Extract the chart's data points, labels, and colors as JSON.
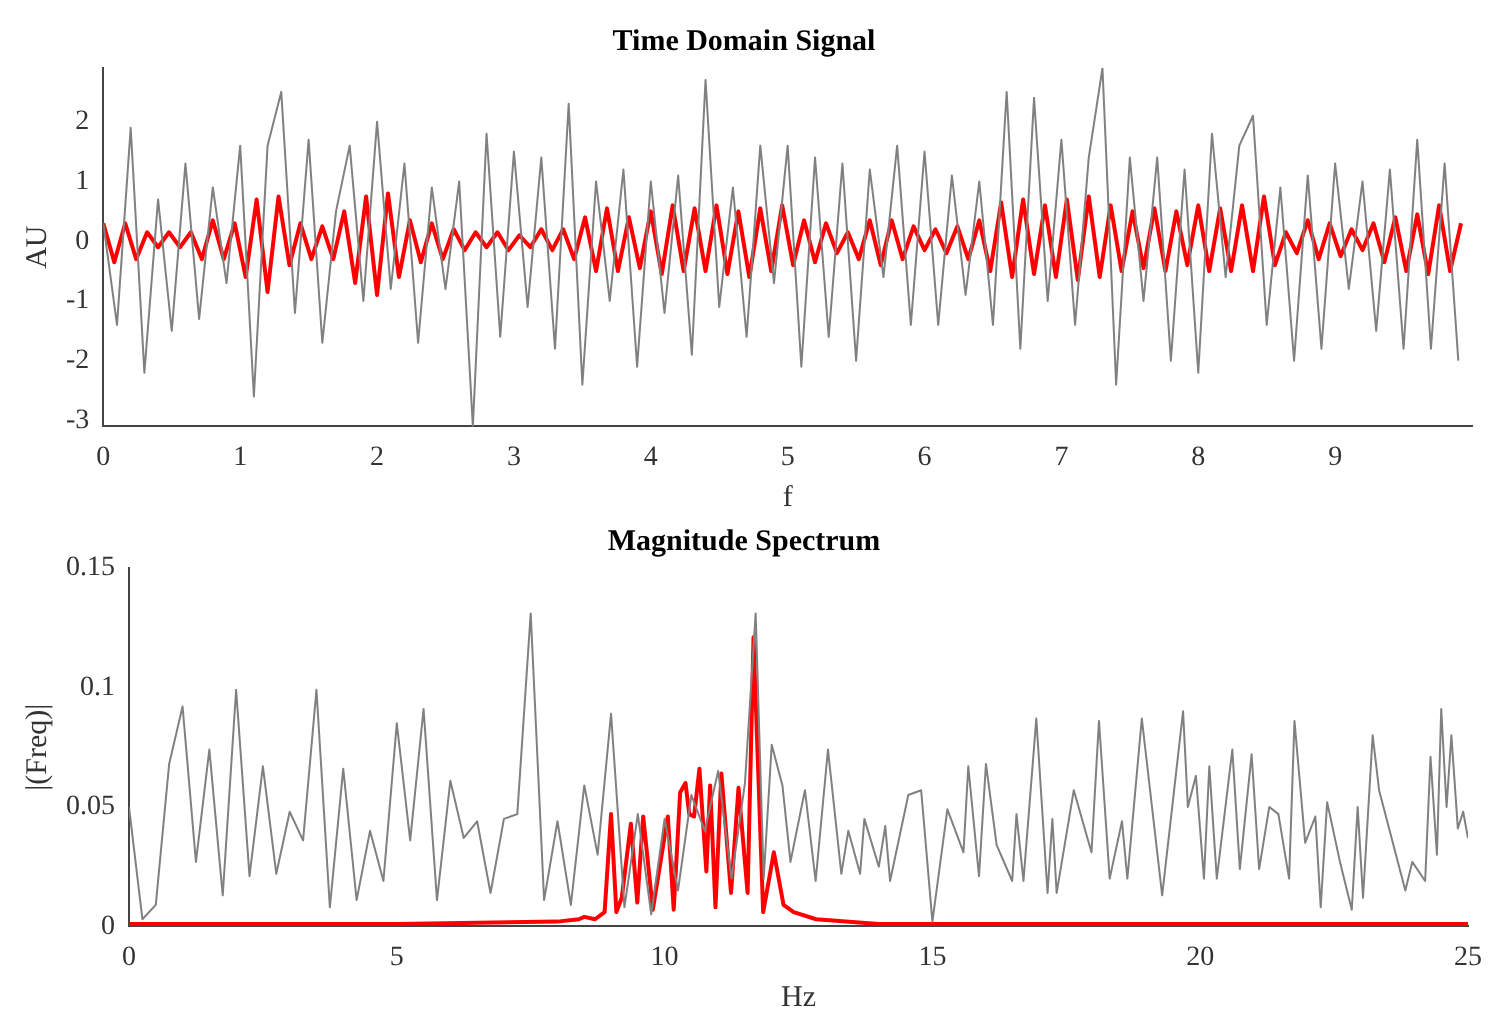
{
  "chart_data": [
    {
      "type": "line",
      "title": "Time Domain Signal",
      "xlabel": "f",
      "ylabel": "AU",
      "xlim": [
        0,
        10
      ],
      "xticks": [
        0,
        1,
        2,
        3,
        4,
        5,
        6,
        7,
        8,
        9
      ],
      "ylim": [
        -3.1,
        2.9
      ],
      "yticks": [
        -3,
        -2,
        -1,
        0,
        1,
        2
      ],
      "series": [
        {
          "color": "#808080",
          "x": [
            0,
            0.1,
            0.2,
            0.3,
            0.4,
            0.5,
            0.6,
            0.7,
            0.8,
            0.9,
            1,
            1.1,
            1.2,
            1.3,
            1.4,
            1.5,
            1.6,
            1.7,
            1.8,
            1.9,
            2,
            2.1,
            2.2,
            2.3,
            2.4,
            2.5,
            2.6,
            2.7,
            2.8,
            2.9,
            3,
            3.1,
            3.2,
            3.3,
            3.4,
            3.5,
            3.6,
            3.7,
            3.8,
            3.9,
            4,
            4.1,
            4.2,
            4.3,
            4.4,
            4.5,
            4.6,
            4.7,
            4.8,
            4.9,
            5,
            5.1,
            5.2,
            5.3,
            5.4,
            5.5,
            5.6,
            5.7,
            5.8,
            5.9,
            6,
            6.1,
            6.2,
            6.3,
            6.4,
            6.5,
            6.6,
            6.7,
            6.8,
            6.9,
            7,
            7.1,
            7.2,
            7.3,
            7.4,
            7.5,
            7.6,
            7.7,
            7.8,
            7.9,
            8,
            8.1,
            8.2,
            8.3,
            8.4,
            8.5,
            8.6,
            8.7,
            8.8,
            8.9,
            9,
            9.1,
            9.2,
            9.3,
            9.4,
            9.5,
            9.6,
            9.7,
            9.8,
            9.9
          ],
          "values": [
            0.3,
            -1.4,
            1.9,
            -2.2,
            0.7,
            -1.5,
            1.3,
            -1.3,
            0.9,
            -0.7,
            1.6,
            -2.6,
            1.6,
            2.5,
            -1.2,
            1.7,
            -1.7,
            0.5,
            1.6,
            -1,
            2,
            -0.8,
            1.3,
            -1.7,
            0.9,
            -0.8,
            1,
            -3.1,
            1.8,
            -1.6,
            1.5,
            -1.1,
            1.4,
            -1.8,
            2.3,
            -2.4,
            1,
            -1,
            1.2,
            -2.1,
            1,
            -1.2,
            1.1,
            -1.9,
            2.7,
            -1.1,
            0.9,
            -1.6,
            1.6,
            -0.7,
            1.6,
            -2.1,
            1.4,
            -1.6,
            1.3,
            -2,
            1.2,
            -0.6,
            1.6,
            -1.4,
            1.5,
            -1.4,
            1.1,
            -0.9,
            1,
            -1.4,
            2.5,
            -1.8,
            2.4,
            -1,
            1.7,
            -1.4,
            1.4,
            2.9,
            -2.4,
            1.4,
            -1,
            1.4,
            -2,
            1.2,
            -2.2,
            1.8,
            -0.6,
            1.6,
            2.1,
            -1.4,
            0.9,
            -2,
            1.1,
            -1.8,
            1.3,
            -0.8,
            1,
            -1.5,
            1.2,
            -1.8,
            1.7,
            -1.8,
            1.3,
            -2
          ]
        },
        {
          "color": "#ff0000",
          "x": [
            0,
            0.08,
            0.16,
            0.24,
            0.32,
            0.4,
            0.48,
            0.56,
            0.64,
            0.72,
            0.8,
            0.88,
            0.96,
            1.04,
            1.12,
            1.2,
            1.28,
            1.36,
            1.44,
            1.52,
            1.6,
            1.68,
            1.76,
            1.84,
            1.92,
            2,
            2.08,
            2.16,
            2.24,
            2.32,
            2.4,
            2.48,
            2.56,
            2.64,
            2.72,
            2.8,
            2.88,
            2.96,
            3.04,
            3.12,
            3.2,
            3.28,
            3.36,
            3.44,
            3.52,
            3.6,
            3.68,
            3.76,
            3.84,
            3.92,
            4,
            4.08,
            4.16,
            4.24,
            4.32,
            4.4,
            4.48,
            4.56,
            4.64,
            4.72,
            4.8,
            4.88,
            4.96,
            5.04,
            5.12,
            5.2,
            5.28,
            5.36,
            5.44,
            5.52,
            5.6,
            5.68,
            5.76,
            5.84,
            5.92,
            6,
            6.08,
            6.16,
            6.24,
            6.32,
            6.4,
            6.48,
            6.56,
            6.64,
            6.72,
            6.8,
            6.88,
            6.96,
            7.04,
            7.12,
            7.2,
            7.28,
            7.36,
            7.44,
            7.52,
            7.6,
            7.68,
            7.76,
            7.84,
            7.92,
            8,
            8.08,
            8.16,
            8.24,
            8.32,
            8.4,
            8.48,
            8.56,
            8.64,
            8.72,
            8.8,
            8.88,
            8.96,
            9.04,
            9.12,
            9.2,
            9.28,
            9.36,
            9.44,
            9.52,
            9.6,
            9.68,
            9.76,
            9.84,
            9.92
          ],
          "values": [
            0.3,
            -0.35,
            0.3,
            -0.3,
            0.15,
            -0.1,
            0.15,
            -0.1,
            0.15,
            -0.3,
            0.35,
            -0.3,
            0.3,
            -0.6,
            0.7,
            -0.85,
            0.75,
            -0.4,
            0.3,
            -0.3,
            0.25,
            -0.3,
            0.5,
            -0.7,
            0.75,
            -0.9,
            0.8,
            -0.6,
            0.35,
            -0.35,
            0.3,
            -0.3,
            0.2,
            -0.15,
            0.15,
            -0.1,
            0.15,
            -0.15,
            0.1,
            -0.1,
            0.2,
            -0.15,
            0.2,
            -0.3,
            0.4,
            -0.5,
            0.55,
            -0.5,
            0.4,
            -0.45,
            0.5,
            -0.55,
            0.6,
            -0.5,
            0.55,
            -0.5,
            0.6,
            -0.55,
            0.5,
            -0.6,
            0.55,
            -0.5,
            0.6,
            -0.4,
            0.35,
            -0.35,
            0.3,
            -0.2,
            0.15,
            -0.3,
            0.35,
            -0.4,
            0.35,
            -0.3,
            0.25,
            -0.15,
            0.2,
            -0.2,
            0.25,
            -0.3,
            0.35,
            -0.5,
            0.65,
            -0.6,
            0.7,
            -0.55,
            0.6,
            -0.6,
            0.7,
            -0.65,
            0.75,
            -0.6,
            0.6,
            -0.5,
            0.5,
            -0.45,
            0.55,
            -0.5,
            0.5,
            -0.4,
            0.6,
            -0.5,
            0.55,
            -0.5,
            0.6,
            -0.5,
            0.75,
            -0.4,
            0.15,
            -0.2,
            0.35,
            -0.3,
            0.3,
            -0.25,
            0.2,
            -0.15,
            0.3,
            -0.35,
            0.4,
            -0.5,
            0.45,
            -0.55,
            0.6,
            -0.5,
            0.3
          ]
        }
      ]
    },
    {
      "type": "line",
      "title": "Magnitude Spectrum",
      "xlabel": "Hz",
      "ylabel": "|(Freq)|",
      "xlim": [
        0,
        25
      ],
      "xticks": [
        0,
        5,
        10,
        15,
        20,
        25
      ],
      "ylim": [
        0,
        0.15
      ],
      "yticks": [
        0,
        0.05,
        0.1,
        0.15
      ],
      "series": [
        {
          "color": "#808080",
          "x": [
            0,
            0.25,
            0.5,
            0.75,
            1,
            1.25,
            1.5,
            1.75,
            2,
            2.25,
            2.5,
            2.75,
            3,
            3.25,
            3.5,
            3.75,
            4,
            4.25,
            4.5,
            4.75,
            5,
            5.25,
            5.5,
            5.75,
            6,
            6.25,
            6.5,
            6.75,
            7,
            7.25,
            7.5,
            7.75,
            8,
            8.25,
            8.5,
            8.75,
            9,
            9.25,
            9.5,
            9.75,
            10,
            10.25,
            10.5,
            10.75,
            11,
            11.25,
            11.5,
            11.7,
            11.85,
            12,
            12.2,
            12.35,
            12.62,
            12.82,
            13.05,
            13.3,
            13.43,
            13.65,
            13.73,
            14,
            14.12,
            14.21,
            14.55,
            14.79,
            15,
            15.28,
            15.58,
            15.67,
            15.87,
            16,
            16.2,
            16.49,
            16.57,
            16.7,
            16.94,
            17.15,
            17.24,
            17.32,
            17.64,
            17.97,
            18.11,
            18.31,
            18.54,
            18.64,
            18.91,
            19.29,
            19.68,
            19.77,
            19.92,
            20.07,
            20.17,
            20.31,
            20.6,
            20.74,
            20.96,
            21.1,
            21.29,
            21.46,
            21.66,
            21.76,
            21.96,
            22.15,
            22.25,
            22.37,
            22.61,
            22.83,
            22.94,
            23.04,
            23.22,
            23.34,
            23.83,
            23.96,
            24.2,
            24.3,
            24.42,
            24.5,
            24.6,
            24.69,
            24.81,
            24.91,
            25
          ],
          "values": [
            0.05,
            0.003,
            0.009,
            0.068,
            0.092,
            0.027,
            0.074,
            0.013,
            0.099,
            0.021,
            0.067,
            0.022,
            0.048,
            0.036,
            0.099,
            0.008,
            0.066,
            0.011,
            0.04,
            0.019,
            0.085,
            0.036,
            0.091,
            0.011,
            0.061,
            0.037,
            0.044,
            0.014,
            0.045,
            0.047,
            0.131,
            0.011,
            0.044,
            0.009,
            0.059,
            0.03,
            0.089,
            0.008,
            0.047,
            0.005,
            0.045,
            0.015,
            0.055,
            0.04,
            0.065,
            0.02,
            0.06,
            0.131,
            0.02,
            0.076,
            0.059,
            0.027,
            0.057,
            0.019,
            0.074,
            0.022,
            0.04,
            0.022,
            0.045,
            0.025,
            0.042,
            0.019,
            0.055,
            0.057,
            0.002,
            0.049,
            0.031,
            0.067,
            0.021,
            0.068,
            0.034,
            0.019,
            0.047,
            0.019,
            0.087,
            0.014,
            0.045,
            0.014,
            0.057,
            0.031,
            0.086,
            0.02,
            0.044,
            0.02,
            0.087,
            0.013,
            0.09,
            0.05,
            0.063,
            0.02,
            0.067,
            0.02,
            0.074,
            0.024,
            0.072,
            0.024,
            0.05,
            0.047,
            0.02,
            0.086,
            0.035,
            0.046,
            0.008,
            0.052,
            0.027,
            0.007,
            0.05,
            0.012,
            0.08,
            0.057,
            0.015,
            0.027,
            0.019,
            0.071,
            0.03,
            0.091,
            0.05,
            0.08,
            0.041,
            0.048,
            0.037
          ]
        },
        {
          "color": "#ff0000",
          "x": [
            0,
            5,
            8,
            8.4,
            8.5,
            8.7,
            8.88,
            9,
            9.1,
            9.2,
            9.37,
            9.49,
            9.6,
            9.78,
            10.06,
            10.17,
            10.29,
            10.39,
            10.46,
            10.55,
            10.65,
            10.78,
            10.85,
            10.95,
            11.06,
            11.24,
            11.38,
            11.55,
            11.66,
            11.84,
            12.04,
            12.22,
            12.41,
            12.83,
            14,
            25
          ],
          "values": [
            0.001,
            0.001,
            0.002,
            0.003,
            0.004,
            0.003,
            0.006,
            0.047,
            0.006,
            0.012,
            0.043,
            0.01,
            0.046,
            0.007,
            0.046,
            0.007,
            0.056,
            0.06,
            0.047,
            0.046,
            0.066,
            0.023,
            0.059,
            0.008,
            0.064,
            0.014,
            0.058,
            0.014,
            0.121,
            0.006,
            0.031,
            0.009,
            0.006,
            0.003,
            0.001,
            0.001
          ]
        }
      ]
    }
  ]
}
